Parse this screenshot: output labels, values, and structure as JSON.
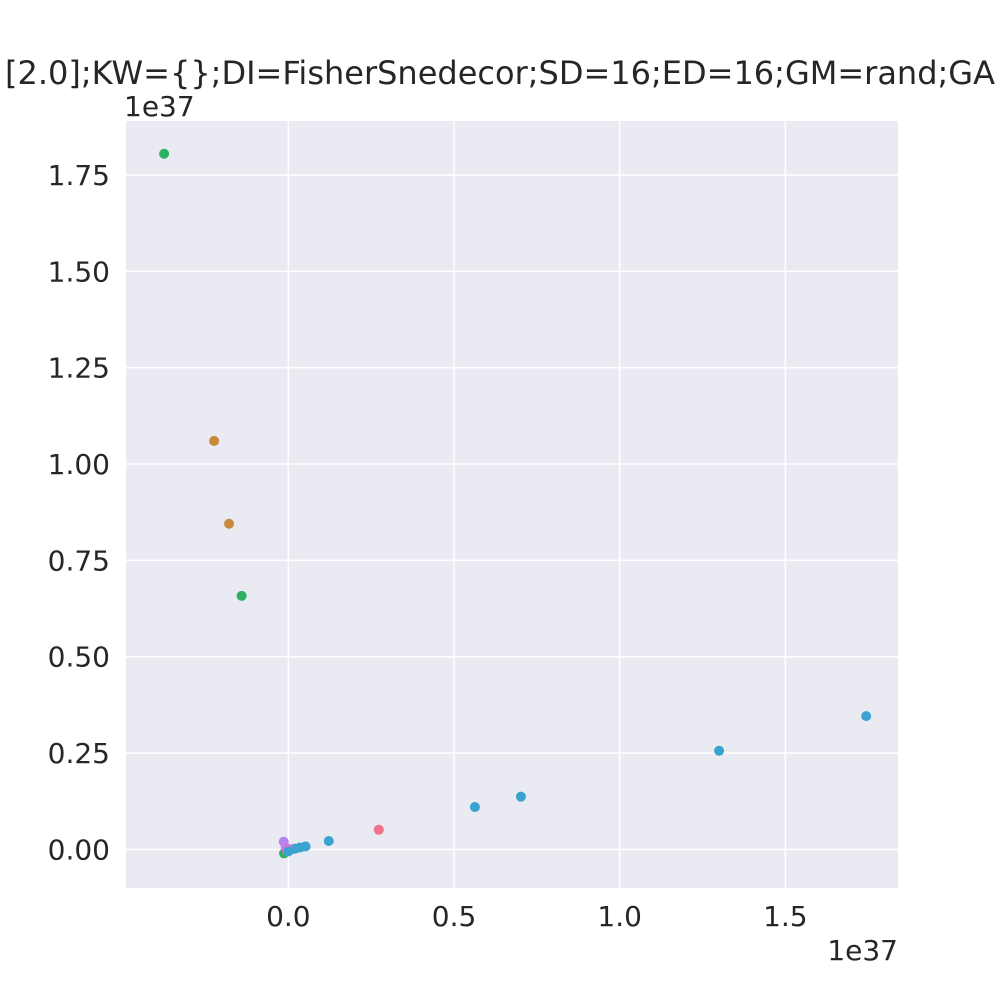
{
  "chart_data": {
    "type": "scatter",
    "title": "[2.0];KW={};DI=FisherSnedecor;SD=16;ED=16;GM=rand;GA",
    "xlabel": "",
    "ylabel": "",
    "x_offset_label": "1e37",
    "y_offset_label": "1e37",
    "xlim": [
      -0.49,
      1.84
    ],
    "ylim": [
      -0.1,
      1.89
    ],
    "x_ticks": [
      0.0,
      0.5,
      1.0,
      1.5
    ],
    "x_tick_labels": [
      "0.0",
      "0.5",
      "1.0",
      "1.5"
    ],
    "y_ticks": [
      0.0,
      0.25,
      0.5,
      0.75,
      1.0,
      1.25,
      1.5,
      1.75
    ],
    "y_tick_labels": [
      "0.00",
      "0.25",
      "0.50",
      "0.75",
      "1.00",
      "1.25",
      "1.50",
      "1.75"
    ],
    "grid": true,
    "background": "#eaeaf2",
    "grid_color": "#ffffff",
    "points": [
      {
        "x": -0.375,
        "y": 1.805,
        "color": "#2fb064"
      },
      {
        "x": -0.224,
        "y": 1.06,
        "color": "#c8893a"
      },
      {
        "x": -0.179,
        "y": 0.845,
        "color": "#c8893a"
      },
      {
        "x": -0.141,
        "y": 0.658,
        "color": "#2fb064"
      },
      {
        "x": 1.744,
        "y": 0.346,
        "color": "#3ba3d0"
      },
      {
        "x": 1.3,
        "y": 0.256,
        "color": "#3ba3d0"
      },
      {
        "x": 0.702,
        "y": 0.137,
        "color": "#3ba3d0"
      },
      {
        "x": 0.563,
        "y": 0.11,
        "color": "#3ba3d0"
      },
      {
        "x": 0.273,
        "y": 0.051,
        "color": "#f07189"
      },
      {
        "x": 0.122,
        "y": 0.022,
        "color": "#3ba3d0"
      },
      {
        "x": 0.052,
        "y": 0.008,
        "color": "#3ba3d0"
      },
      {
        "x": 0.035,
        "y": 0.005,
        "color": "#3ba3d0"
      },
      {
        "x": 0.02,
        "y": 0.002,
        "color": "#3ba3d0"
      },
      {
        "x": 0.008,
        "y": 0.0,
        "color": "#3ba3d0"
      },
      {
        "x": -0.003,
        "y": -0.002,
        "color": "#3ba3d0"
      },
      {
        "x": -0.013,
        "y": -0.01,
        "color": "#2fb064"
      },
      {
        "x": -0.014,
        "y": 0.02,
        "color": "#b884f0"
      },
      {
        "x": -0.008,
        "y": 0.005,
        "color": "#b884f0"
      },
      {
        "x": -0.004,
        "y": -0.003,
        "color": "#e86bd8"
      },
      {
        "x": -0.002,
        "y": 0.001,
        "color": "#e86bd8"
      },
      {
        "x": 0.0,
        "y": -0.005,
        "color": "#3ba3d0"
      }
    ]
  }
}
